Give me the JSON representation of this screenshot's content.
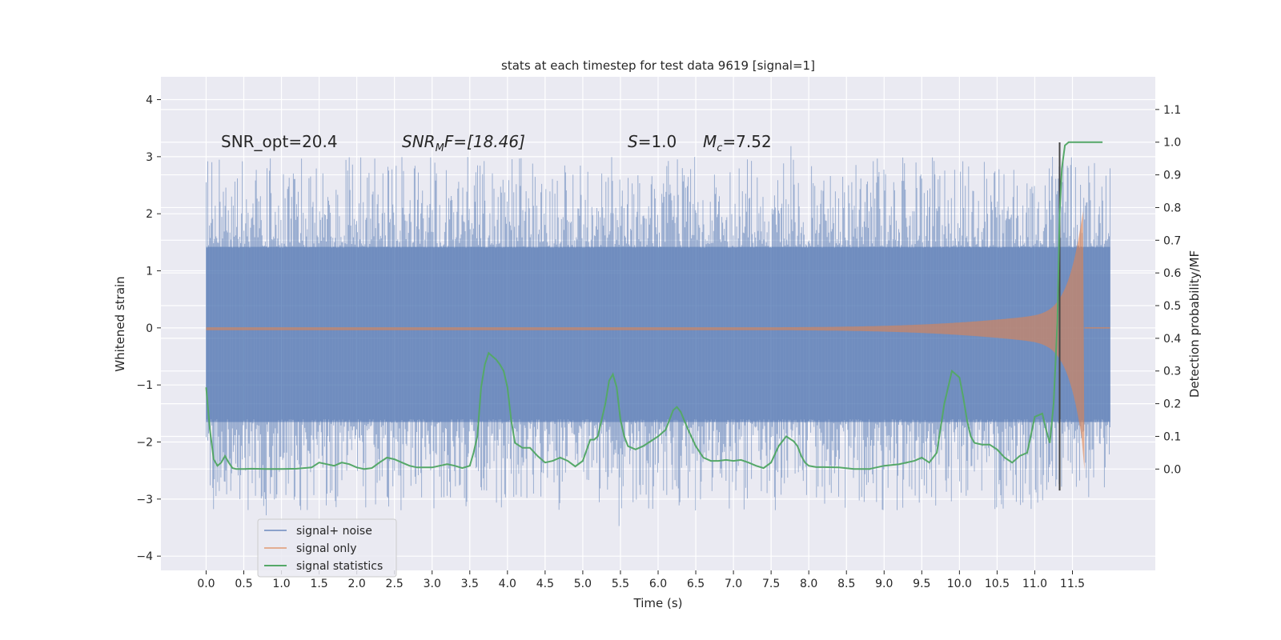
{
  "chart_data": {
    "type": "line",
    "title": "stats at each timestep for test data 9619 [signal=1]",
    "xlabel": "Time (s)",
    "ylabel_left": "Whitened strain",
    "ylabel_right": "Detection probability/MF",
    "xlim": [
      -0.6,
      12.6
    ],
    "ylim_left": [
      -4.25,
      4.4
    ],
    "ylim_right": [
      -0.31,
      1.2
    ],
    "x_ticks": [
      0.0,
      0.5,
      1.0,
      1.5,
      2.0,
      2.5,
      3.0,
      3.5,
      4.0,
      4.5,
      5.0,
      5.5,
      6.0,
      6.5,
      7.0,
      7.5,
      8.0,
      8.5,
      9.0,
      9.5,
      10.0,
      10.5,
      11.0,
      11.5
    ],
    "x_tick_labels": [
      "0.0",
      "0.5",
      "1.0",
      "1.5",
      "2.0",
      "2.5",
      "3.0",
      "3.5",
      "4.0",
      "4.5",
      "5.0",
      "5.5",
      "6.0",
      "6.5",
      "7.0",
      "7.5",
      "8.0",
      "8.5",
      "9.0",
      "9.5",
      "10.0",
      "10.5",
      "11.0",
      "11.5"
    ],
    "y_left_ticks": [
      -4,
      -3,
      -2,
      -1,
      0,
      1,
      2,
      3,
      4
    ],
    "y_left_tick_labels": [
      "−4",
      "−3",
      "−2",
      "−1",
      "0",
      "1",
      "2",
      "3",
      "4"
    ],
    "y_right_ticks": [
      0.0,
      0.1,
      0.2,
      0.3,
      0.4,
      0.5,
      0.6,
      0.7,
      0.8,
      0.9,
      1.0,
      1.1
    ],
    "y_right_tick_labels": [
      "0.0",
      "0.1",
      "0.2",
      "0.3",
      "0.4",
      "0.5",
      "0.6",
      "0.7",
      "0.8",
      "0.9",
      "1.0",
      "1.1"
    ],
    "annotations": {
      "snr_opt": "SNR_opt=20.4",
      "snr_mf_base": "SNR",
      "snr_mf_sub": "M",
      "snr_mf_rest": "F=[18.46]",
      "s_sym": "S",
      "s_val": "=1.0",
      "mc_sym": "M",
      "mc_sub": "c",
      "mc_val": "=7.52"
    },
    "legend": {
      "position": "lower-left",
      "entries": [
        "signal+ noise",
        "signal only",
        "signal statistics"
      ]
    },
    "colors": {
      "background": "#eaeaf2",
      "grid": "#ffffff",
      "signal_noise": "#4c72b0",
      "signal_only": "#dd8452",
      "statistics": "#55a868",
      "event_line": "#444444"
    },
    "series": [
      {
        "name": "signal statistics",
        "axis": "right",
        "x": [
          0.0,
          0.05,
          0.1,
          0.15,
          0.2,
          0.25,
          0.3,
          0.35,
          0.4,
          0.5,
          0.6,
          0.8,
          1.0,
          1.2,
          1.4,
          1.5,
          1.6,
          1.7,
          1.8,
          1.9,
          2.0,
          2.1,
          2.2,
          2.3,
          2.4,
          2.5,
          2.6,
          2.7,
          2.8,
          3.0,
          3.2,
          3.3,
          3.4,
          3.5,
          3.55,
          3.6,
          3.65,
          3.7,
          3.75,
          3.8,
          3.85,
          3.9,
          3.95,
          4.0,
          4.05,
          4.1,
          4.2,
          4.3,
          4.4,
          4.5,
          4.6,
          4.7,
          4.8,
          4.9,
          5.0,
          5.1,
          5.15,
          5.2,
          5.3,
          5.35,
          5.4,
          5.45,
          5.5,
          5.55,
          5.6,
          5.7,
          5.8,
          5.9,
          6.0,
          6.1,
          6.2,
          6.25,
          6.3,
          6.4,
          6.5,
          6.6,
          6.7,
          6.8,
          6.9,
          7.0,
          7.1,
          7.2,
          7.3,
          7.4,
          7.5,
          7.6,
          7.7,
          7.8,
          7.85,
          7.9,
          7.95,
          8.0,
          8.1,
          8.2,
          8.4,
          8.6,
          8.8,
          9.0,
          9.2,
          9.4,
          9.5,
          9.6,
          9.7,
          9.8,
          9.9,
          10.0,
          10.05,
          10.1,
          10.15,
          10.2,
          10.3,
          10.4,
          10.5,
          10.6,
          10.7,
          10.8,
          10.9,
          11.0,
          11.1,
          11.15,
          11.2,
          11.25,
          11.3,
          11.33,
          11.36,
          11.4,
          11.45,
          11.5,
          11.6,
          11.7,
          11.8,
          11.9
        ],
        "values": [
          0.25,
          0.12,
          0.03,
          0.01,
          0.02,
          0.04,
          0.02,
          0.003,
          0.0,
          0.0,
          0.001,
          0.0,
          0.0,
          0.001,
          0.005,
          0.02,
          0.015,
          0.01,
          0.02,
          0.015,
          0.005,
          0.0,
          0.003,
          0.02,
          0.035,
          0.03,
          0.02,
          0.01,
          0.005,
          0.005,
          0.015,
          0.01,
          0.003,
          0.01,
          0.05,
          0.1,
          0.25,
          0.32,
          0.355,
          0.345,
          0.335,
          0.32,
          0.3,
          0.25,
          0.15,
          0.08,
          0.065,
          0.065,
          0.04,
          0.02,
          0.025,
          0.035,
          0.025,
          0.008,
          0.025,
          0.09,
          0.09,
          0.1,
          0.2,
          0.27,
          0.29,
          0.25,
          0.15,
          0.1,
          0.07,
          0.06,
          0.07,
          0.085,
          0.1,
          0.12,
          0.18,
          0.19,
          0.175,
          0.12,
          0.07,
          0.035,
          0.025,
          0.025,
          0.028,
          0.025,
          0.028,
          0.02,
          0.01,
          0.003,
          0.02,
          0.07,
          0.1,
          0.085,
          0.07,
          0.04,
          0.02,
          0.01,
          0.006,
          0.006,
          0.005,
          0.0,
          0.0,
          0.01,
          0.015,
          0.025,
          0.035,
          0.02,
          0.05,
          0.2,
          0.3,
          0.28,
          0.22,
          0.15,
          0.1,
          0.08,
          0.075,
          0.075,
          0.06,
          0.035,
          0.02,
          0.04,
          0.05,
          0.16,
          0.17,
          0.12,
          0.08,
          0.2,
          0.45,
          0.78,
          0.92,
          0.99,
          1.0,
          1.0,
          1.0,
          1.0,
          1.0,
          1.0
        ]
      }
    ]
  }
}
